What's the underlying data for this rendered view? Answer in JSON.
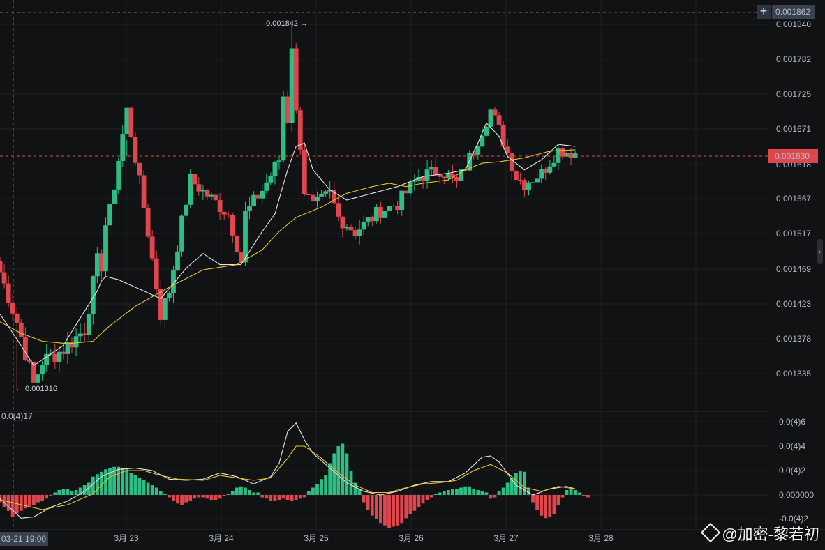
{
  "header": {
    "crosshair_price": "0.001862",
    "current_price": "0.001630",
    "crosshair_time": "03-21 19:00",
    "oscillator_label": "0.0(4)17"
  },
  "icons": [
    "plus-icon",
    "chevron-right-icon",
    "binance-logo-icon"
  ],
  "colors": {
    "up": "#2ebd85",
    "down": "#e0464d",
    "ma_fast": "#e6e6e6",
    "ma_slow": "#e8c520",
    "price_tag_bg": "#e0464d",
    "crosshair_tag_bg": "#3a4250"
  },
  "chart_data": [
    {
      "type": "candlestick",
      "y_ticks": [
        "0.001840",
        "0.001782",
        "0.001725",
        "0.001671",
        "0.001618",
        "0.001567",
        "0.001517",
        "0.001469",
        "0.001423",
        "0.001378",
        "0.001335"
      ],
      "x_ticks": [
        "3月 23",
        "3月 24",
        "3月 25",
        "3月 26",
        "3月 27",
        "3月 28"
      ],
      "annotations": {
        "max": "0.001842",
        "min": "0.001316"
      },
      "ylim": [
        0.00129,
        0.00187
      ],
      "grid": true,
      "close_path": [
        [
          0,
          1465
        ],
        [
          4,
          1400
        ],
        [
          8,
          1322
        ],
        [
          10,
          1350
        ],
        [
          15,
          1365
        ],
        [
          20,
          1390
        ],
        [
          23,
          1480
        ],
        [
          24.8,
          1470
        ],
        [
          25,
          1530
        ],
        [
          26,
          1550
        ],
        [
          30,
          1700
        ],
        [
          38,
          1410
        ],
        [
          40,
          1440
        ],
        [
          45,
          1595
        ],
        [
          48,
          1578
        ],
        [
          54,
          1545
        ],
        [
          57,
          1480
        ],
        [
          58,
          1545
        ],
        [
          62,
          1580
        ],
        [
          66,
          1625
        ],
        [
          68,
          1820
        ],
        [
          69,
          1780
        ],
        [
          71,
          1590
        ],
        [
          74,
          1555
        ],
        [
          78,
          1575
        ],
        [
          80,
          1540
        ],
        [
          84,
          1520
        ],
        [
          90,
          1550
        ],
        [
          94,
          1560
        ],
        [
          99,
          1600
        ],
        [
          104,
          1610
        ],
        [
          108,
          1590
        ],
        [
          112,
          1640
        ],
        [
          116,
          1700
        ],
        [
          118,
          1670
        ],
        [
          122,
          1600
        ],
        [
          124,
          1590
        ],
        [
          128,
          1605
        ],
        [
          132,
          1640
        ],
        [
          136,
          1635
        ]
      ],
      "ma_fast_path": [
        [
          0,
          1410
        ],
        [
          8,
          1345
        ],
        [
          15,
          1370
        ],
        [
          23,
          1440
        ],
        [
          24.5,
          1460
        ],
        [
          28,
          1455
        ],
        [
          34,
          1440
        ],
        [
          38,
          1430
        ],
        [
          44,
          1470
        ],
        [
          48,
          1490
        ],
        [
          52,
          1475
        ],
        [
          57,
          1475
        ],
        [
          62,
          1520
        ],
        [
          65,
          1545
        ],
        [
          68,
          1610
        ],
        [
          70,
          1645
        ],
        [
          72,
          1650
        ],
        [
          74,
          1610
        ],
        [
          78,
          1580
        ],
        [
          82,
          1565
        ],
        [
          88,
          1575
        ],
        [
          94,
          1585
        ],
        [
          100,
          1600
        ],
        [
          106,
          1605
        ],
        [
          110,
          1610
        ],
        [
          113,
          1650
        ],
        [
          115,
          1680
        ],
        [
          118,
          1660
        ],
        [
          120,
          1630
        ],
        [
          124,
          1610
        ],
        [
          128,
          1625
        ],
        [
          132,
          1648
        ],
        [
          136,
          1645
        ]
      ],
      "ma_slow_path": [
        [
          0,
          1400
        ],
        [
          5,
          1385
        ],
        [
          10,
          1375
        ],
        [
          16,
          1372
        ],
        [
          22,
          1375
        ],
        [
          26,
          1395
        ],
        [
          32,
          1420
        ],
        [
          40,
          1445
        ],
        [
          48,
          1468
        ],
        [
          56,
          1475
        ],
        [
          62,
          1495
        ],
        [
          66,
          1520
        ],
        [
          70,
          1540
        ],
        [
          76,
          1555
        ],
        [
          82,
          1575
        ],
        [
          88,
          1585
        ],
        [
          92,
          1590
        ],
        [
          96,
          1585
        ],
        [
          100,
          1590
        ],
        [
          106,
          1595
        ],
        [
          110,
          1610
        ],
        [
          114,
          1620
        ],
        [
          118,
          1622
        ],
        [
          124,
          1628
        ],
        [
          130,
          1638
        ],
        [
          136,
          1640
        ]
      ]
    },
    {
      "type": "bar",
      "y_ticks": [
        "0.0(4)6",
        "0.0(4)4",
        "0.0(4)2",
        "0.000000",
        "-0.0(4)2"
      ],
      "ylim": [
        -2.5e-06,
        6.2e-06
      ],
      "macd_path": [
        [
          0,
          -0.3
        ],
        [
          5,
          -1.9
        ],
        [
          8,
          -1.8
        ],
        [
          12,
          -1.0
        ],
        [
          16,
          -0.5
        ],
        [
          20,
          0.3
        ],
        [
          24,
          1.5
        ],
        [
          28,
          2.1
        ],
        [
          32,
          2.2
        ],
        [
          36,
          2.0
        ],
        [
          40,
          1.3
        ],
        [
          44,
          1.2
        ],
        [
          48,
          1.3
        ],
        [
          52,
          1.8
        ],
        [
          56,
          1.5
        ],
        [
          60,
          0.9
        ],
        [
          64,
          1.5
        ],
        [
          66,
          2.6
        ],
        [
          68,
          5.2
        ],
        [
          70,
          5.9
        ],
        [
          72,
          4.5
        ],
        [
          74,
          3.4
        ],
        [
          78,
          2.2
        ],
        [
          82,
          1.0
        ],
        [
          86,
          0.3
        ],
        [
          90,
          0.0
        ],
        [
          94,
          0.3
        ],
        [
          98,
          0.8
        ],
        [
          102,
          1.1
        ],
        [
          106,
          1.1
        ],
        [
          110,
          1.8
        ],
        [
          114,
          3.1
        ],
        [
          116,
          3.2
        ],
        [
          118,
          2.7
        ],
        [
          122,
          0.8
        ],
        [
          126,
          0.0
        ],
        [
          130,
          0.5
        ],
        [
          134,
          0.7
        ],
        [
          136,
          0.5
        ]
      ],
      "signal_path": [
        [
          0,
          -0.4
        ],
        [
          5,
          -0.8
        ],
        [
          10,
          -1.2
        ],
        [
          16,
          -0.8
        ],
        [
          22,
          0.1
        ],
        [
          26,
          1.5
        ],
        [
          30,
          2.0
        ],
        [
          34,
          2.0
        ],
        [
          38,
          1.6
        ],
        [
          42,
          1.3
        ],
        [
          48,
          1.2
        ],
        [
          52,
          1.6
        ],
        [
          56,
          1.4
        ],
        [
          60,
          1.2
        ],
        [
          64,
          1.4
        ],
        [
          68,
          3.0
        ],
        [
          70,
          4.0
        ],
        [
          72,
          4.0
        ],
        [
          76,
          3.0
        ],
        [
          80,
          1.8
        ],
        [
          84,
          0.8
        ],
        [
          88,
          0.2
        ],
        [
          92,
          0.2
        ],
        [
          96,
          0.6
        ],
        [
          100,
          0.9
        ],
        [
          104,
          1.0
        ],
        [
          108,
          1.2
        ],
        [
          112,
          2.0
        ],
        [
          116,
          2.5
        ],
        [
          120,
          1.8
        ],
        [
          124,
          0.6
        ],
        [
          128,
          0.3
        ],
        [
          132,
          0.7
        ],
        [
          136,
          0.5
        ]
      ],
      "bar_values": [
        -0.6,
        -1.0,
        -1.3,
        -1.8,
        -1.5,
        -1.3,
        -1.1,
        -0.9,
        -0.8,
        -0.6,
        -0.5,
        -0.3,
        -0.1,
        0.2,
        0.4,
        0.5,
        0.5,
        0.3,
        0.4,
        0.6,
        0.8,
        1.0,
        1.5,
        1.7,
        1.9,
        2.1,
        2.2,
        2.3,
        2.3,
        2.2,
        2.1,
        1.8,
        1.6,
        1.4,
        1.2,
        1.0,
        0.8,
        0.6,
        0.3,
        0.1,
        -0.2,
        -0.5,
        -0.7,
        -0.8,
        -0.6,
        -0.5,
        -0.3,
        -0.2,
        -0.2,
        -0.3,
        -0.4,
        -0.4,
        -0.3,
        -0.1,
        0.1,
        0.3,
        0.6,
        0.7,
        0.6,
        0.4,
        0.2,
        0.2,
        -0.2,
        -0.3,
        -0.5,
        -0.5,
        -0.4,
        -0.3,
        -0.4,
        -0.5,
        -0.4,
        -0.3,
        -0.2,
        0.3,
        0.6,
        0.9,
        1.3,
        1.6,
        2.6,
        3.4,
        4.0,
        4.2,
        3.4,
        2.0,
        1.0,
        0.5,
        -0.6,
        -1.2,
        -1.7,
        -2.0,
        -2.3,
        -2.5,
        -2.7,
        -2.6,
        -2.5,
        -2.3,
        -1.9,
        -1.6,
        -1.3,
        -1.0,
        -0.7,
        -0.4,
        -0.2,
        0.1,
        0.2,
        0.3,
        0.4,
        0.5,
        0.5,
        0.6,
        0.7,
        0.7,
        0.5,
        0.4,
        0.3,
        0.2,
        -0.3,
        -0.2,
        0.3,
        0.6,
        1.0,
        1.4,
        1.8,
        2.0,
        1.9,
        0.6,
        -0.6,
        -1.2,
        -1.7,
        -1.9,
        -1.8,
        -1.6,
        -0.8,
        -0.2,
        0.4,
        0.5,
        0.4,
        0.2,
        -0.1,
        -0.2
      ]
    }
  ]
}
